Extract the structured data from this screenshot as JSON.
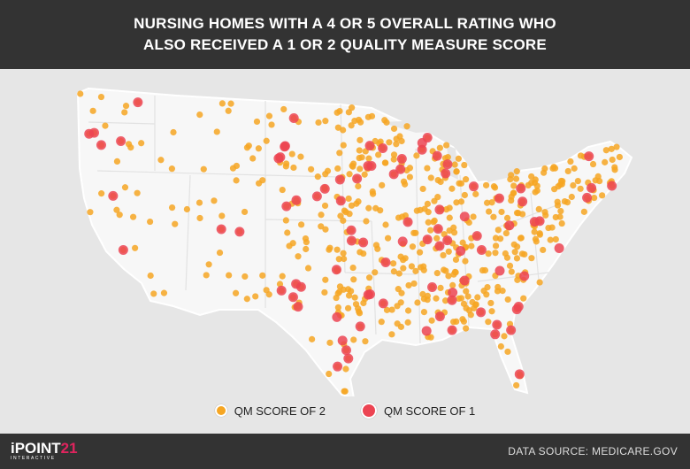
{
  "header": {
    "title": "NURSING HOMES WITH A 4 OR 5 OVERALL RATING WHO ALSO RECEIVED A 1 OR 2 QUALITY MEASURE SCORE"
  },
  "legend": {
    "items": [
      {
        "label": "QM SCORE OF 2",
        "color": "#f6a623"
      },
      {
        "label": "QM SCORE OF 1",
        "color": "#ec4452"
      }
    ]
  },
  "footer": {
    "logo": {
      "text": "iPOINT",
      "number": "21",
      "tagline": "INTERACTIVE"
    },
    "source": "DATA SOURCE: MEDICARE.GOV"
  }
}
